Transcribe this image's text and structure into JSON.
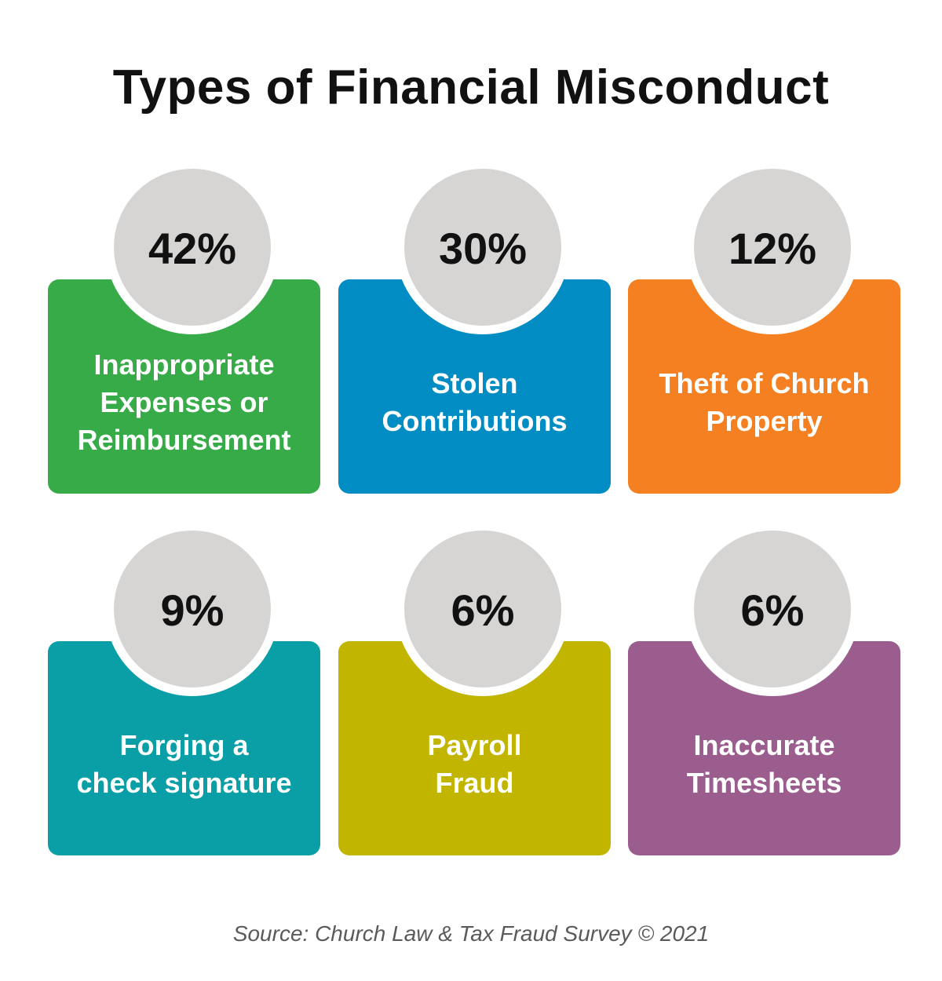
{
  "title": "Types of Financial Misconduct",
  "cards": [
    {
      "percent": "42%",
      "label": "Inappropriate\nExpenses or\nReimbursement",
      "color": "#37ab48"
    },
    {
      "percent": "30%",
      "label": "Stolen\nContributions",
      "color": "#018cc3"
    },
    {
      "percent": "12%",
      "label": "Theft of Church\nProperty",
      "color": "#f58021"
    },
    {
      "percent": "9%",
      "label": "Forging a\ncheck signature",
      "color": "#0a9ea7"
    },
    {
      "percent": "6%",
      "label": "Payroll\nFraud",
      "color": "#c1b500"
    },
    {
      "percent": "6%",
      "label": "Inaccurate\nTimesheets",
      "color": "#9b5d8e"
    }
  ],
  "source": "Source: Church Law & Tax Fraud Survey © 2021"
}
